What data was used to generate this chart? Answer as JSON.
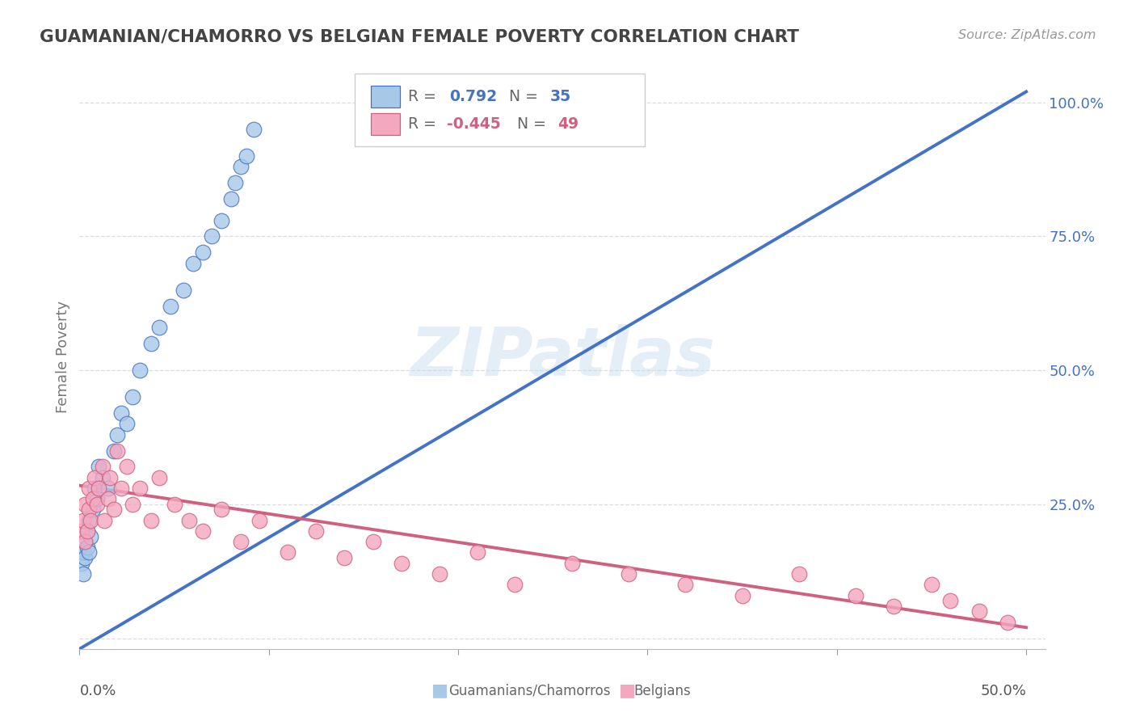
{
  "title": "GUAMANIAN/CHAMORRO VS BELGIAN FEMALE POVERTY CORRELATION CHART",
  "source": "Source: ZipAtlas.com",
  "ylabel": "Female Poverty",
  "legend_blue_r": "0.792",
  "legend_blue_n": "35",
  "legend_pink_r": "-0.445",
  "legend_pink_n": "49",
  "blue_color": "#a8c8e8",
  "pink_color": "#f4a8c0",
  "blue_line_color": "#4472c4",
  "pink_line_color": "#d06080",
  "watermark_text": "ZIPatlas",
  "blue_scatter_x": [
    0.001,
    0.002,
    0.002,
    0.003,
    0.003,
    0.004,
    0.004,
    0.005,
    0.005,
    0.006,
    0.007,
    0.008,
    0.009,
    0.01,
    0.012,
    0.015,
    0.018,
    0.02,
    0.022,
    0.025,
    0.028,
    0.032,
    0.038,
    0.042,
    0.048,
    0.055,
    0.06,
    0.065,
    0.07,
    0.075,
    0.08,
    0.082,
    0.085,
    0.088,
    0.092
  ],
  "blue_scatter_y": [
    0.14,
    0.16,
    0.12,
    0.18,
    0.15,
    0.2,
    0.17,
    0.16,
    0.22,
    0.19,
    0.24,
    0.28,
    0.26,
    0.32,
    0.3,
    0.28,
    0.35,
    0.38,
    0.42,
    0.4,
    0.45,
    0.5,
    0.55,
    0.58,
    0.62,
    0.65,
    0.7,
    0.72,
    0.75,
    0.78,
    0.82,
    0.85,
    0.88,
    0.9,
    0.95
  ],
  "pink_scatter_x": [
    0.001,
    0.002,
    0.003,
    0.003,
    0.004,
    0.005,
    0.005,
    0.006,
    0.007,
    0.008,
    0.009,
    0.01,
    0.012,
    0.013,
    0.015,
    0.016,
    0.018,
    0.02,
    0.022,
    0.025,
    0.028,
    0.032,
    0.038,
    0.042,
    0.05,
    0.058,
    0.065,
    0.075,
    0.085,
    0.095,
    0.11,
    0.125,
    0.14,
    0.155,
    0.17,
    0.19,
    0.21,
    0.23,
    0.26,
    0.29,
    0.32,
    0.35,
    0.38,
    0.41,
    0.43,
    0.45,
    0.46,
    0.475,
    0.49
  ],
  "pink_scatter_y": [
    0.2,
    0.22,
    0.18,
    0.25,
    0.2,
    0.24,
    0.28,
    0.22,
    0.26,
    0.3,
    0.25,
    0.28,
    0.32,
    0.22,
    0.26,
    0.3,
    0.24,
    0.35,
    0.28,
    0.32,
    0.25,
    0.28,
    0.22,
    0.3,
    0.25,
    0.22,
    0.2,
    0.24,
    0.18,
    0.22,
    0.16,
    0.2,
    0.15,
    0.18,
    0.14,
    0.12,
    0.16,
    0.1,
    0.14,
    0.12,
    0.1,
    0.08,
    0.12,
    0.08,
    0.06,
    0.1,
    0.07,
    0.05,
    0.03
  ],
  "blue_line_x": [
    0.0,
    0.5
  ],
  "blue_line_y": [
    -0.02,
    1.02
  ],
  "pink_line_x": [
    0.0,
    0.5
  ],
  "pink_line_y": [
    0.285,
    0.02
  ],
  "xlim": [
    0.0,
    0.51
  ],
  "ylim": [
    -0.02,
    1.07
  ],
  "y_ticks": [
    0.0,
    0.25,
    0.5,
    0.75,
    1.0
  ],
  "y_tick_labels": [
    "",
    "25.0%",
    "50.0%",
    "75.0%",
    "100.0%"
  ],
  "background_color": "#ffffff",
  "grid_color": "#dddddd"
}
